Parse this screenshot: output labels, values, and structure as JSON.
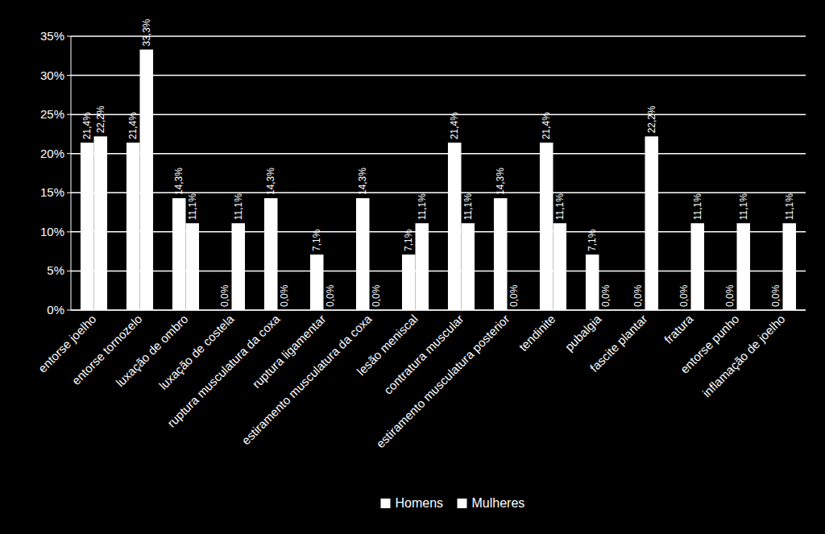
{
  "chart_data": {
    "type": "bar",
    "categories": [
      "entorse joelho",
      "entorse tornozelo",
      "luxação de ombro",
      "luxação de costela",
      "ruptura musculatura da coxa",
      "ruptura ligamentar",
      "estiramento musculatura da coxa",
      "lesão meniscal",
      "contratura muscular",
      "estiramento musculatura posterior",
      "tendinite",
      "pubalgia",
      "fascite plantar",
      "fratura",
      "entorse punho",
      "inflamação de joelho"
    ],
    "series": [
      {
        "name": "Homens",
        "color": "#ffffff",
        "values": [
          21.4,
          21.4,
          14.3,
          0.0,
          14.3,
          7.1,
          14.3,
          7.1,
          21.4,
          14.3,
          21.4,
          7.1,
          0.0,
          0.0,
          0.0,
          0.0
        ],
        "value_labels": [
          "21,4%",
          "21,4%",
          "14,3%",
          "0,0%",
          "14,3%",
          "7,1%",
          "14,3%",
          "7,1%",
          "21,4%",
          "14,3%",
          "21,4%",
          "7,1%",
          "0,0%",
          "0,0%",
          "0,0%",
          "0,0%"
        ]
      },
      {
        "name": "Mulheres",
        "color": "#ffffff",
        "values": [
          22.2,
          33.3,
          11.1,
          11.1,
          0.0,
          0.0,
          0.0,
          11.1,
          11.1,
          0.0,
          11.1,
          0.0,
          22.2,
          11.1,
          11.1,
          11.1
        ],
        "value_labels": [
          "22,2%",
          "33,3%",
          "11,1%",
          "11,1%",
          "0,0%",
          "0,0%",
          "0,0%",
          "11,1%",
          "11,1%",
          "0,0%",
          "11,1%",
          "0,0%",
          "22,2%",
          "11,1%",
          "11,1%",
          "11,1%"
        ]
      }
    ],
    "ylim": [
      0,
      35
    ],
    "yticks": [
      {
        "value": 0,
        "label": "0%"
      },
      {
        "value": 5,
        "label": "5%"
      },
      {
        "value": 10,
        "label": "10%"
      },
      {
        "value": 15,
        "label": "15%"
      },
      {
        "value": 20,
        "label": "20%"
      },
      {
        "value": 25,
        "label": "25%"
      },
      {
        "value": 30,
        "label": "30%"
      },
      {
        "value": 35,
        "label": "35%"
      }
    ],
    "grid": true,
    "data_labels": true,
    "legend": "bottom"
  }
}
